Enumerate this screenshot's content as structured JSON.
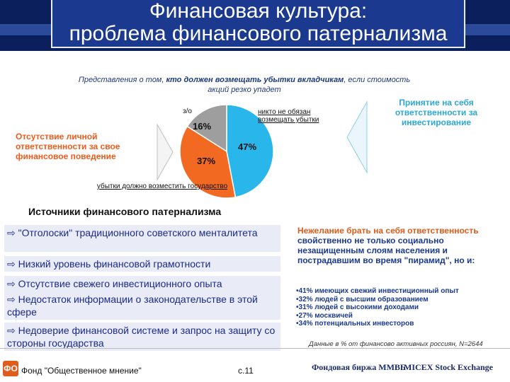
{
  "header": {
    "title_line1": "Финансовая культура:",
    "title_line2": "проблема финансового патернализма"
  },
  "subtitle": {
    "text_part1": "Представления о том, ",
    "text_bold": "кто должен возмещать убытки вкладчикам",
    "text_part2": ", если стоимость акций резко упадет"
  },
  "pie": {
    "labels": {
      "dont_know": "з/о",
      "nobody": "никто не обязан возмещать убытки",
      "state": "убытки должно возместить государство"
    },
    "values_text": {
      "dont_know": "16%",
      "nobody": "47%",
      "state": "37%"
    }
  },
  "chart_data": {
    "type": "pie",
    "categories": [
      "никто не обязан возмещать убытки",
      "убытки должно возместить государство",
      "з/о"
    ],
    "values": [
      47,
      37,
      16
    ],
    "colors": [
      "#29b6ea",
      "#f26a22",
      "#9e9e9e"
    ]
  },
  "left_note": "Отсутствие личной ответственности за свое финансовое поведение",
  "right_note": "Принятие на себя ответственности за инвестирование",
  "sources": {
    "title": "Источники финансового патернализма",
    "items": [
      "\"Отголоски\" традиционного советского менталитета",
      "Низкий уровень финансовой грамотности",
      "Отсутствие свежего инвестиционного опыта",
      "Недостаток информации о законодательстве в этой сфере",
      "Недоверие финансовой системе и запрос на защиту со стороны государства"
    ]
  },
  "right_block": {
    "lead": "Нежелание брать на себя ответственность",
    "text": " свойственно не только социально незащищенным слоям населения и пострадавшим во время \"пирамид\", но и:",
    "bullets": [
      "•41% имеющих свежий инвестиционный опыт",
      "•32% людей с высшим образованием",
      "•31% людей с высокими доходами",
      "•27% москвичей",
      "•34% потенциальных инвесторов"
    ]
  },
  "note": "Данные в % от финансово активных россиян, N=2644",
  "footer": {
    "fond": "Фонд \"Общественное мнение\"",
    "page": "с.11",
    "logo_letters": "ФО",
    "partner1": "Фондовая биржа ММВБ",
    "partner2": "MICEX Stock Exchange"
  }
}
